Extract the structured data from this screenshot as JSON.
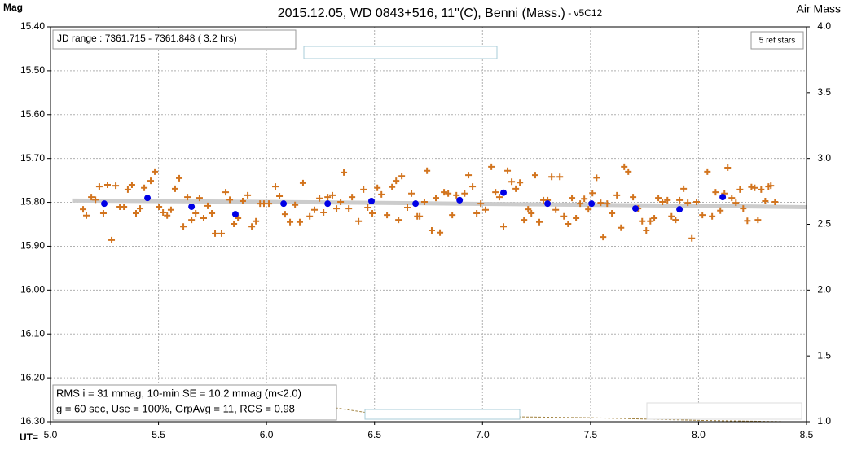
{
  "chart_data": {
    "type": "scatter",
    "title": "2015.12.05, WD 0843+516, 11''(C), Benni (Mass.)",
    "subtitle": " - v5C12",
    "y_label": "Mag",
    "y2_label": "Air Mass",
    "x_label": "UT=",
    "annotations": [
      "JD range : 7361.715 - 7361.848 ( 3.2 hrs)",
      "5 ref stars",
      "RMS i = 31 mmag, 10-min SE = 10.2 mmag (m<2.0)",
      "g = 60 sec, Use = 100%, GrpAvg = 11, RCS = 0.98"
    ],
    "xlim": [
      5.0,
      8.5
    ],
    "xticks": [
      {
        "value": 5.0,
        "label": "5.0"
      },
      5.5,
      {
        "value": 6.0,
        "label": "6.0"
      },
      6.5,
      {
        "value": 7.0,
        "label": "7.0"
      },
      7.5,
      {
        "value": 8.0,
        "label": "8.0"
      },
      8.5
    ],
    "ylim": [
      15.4,
      16.3
    ],
    "y_inverted": true,
    "yticks": [
      {
        "value": 15.4,
        "label": "15.40"
      },
      {
        "value": 15.5,
        "label": "15.50"
      },
      {
        "value": 15.6,
        "label": "15.60"
      },
      {
        "value": 15.7,
        "label": "15.70"
      },
      {
        "value": 15.8,
        "label": "15.80"
      },
      {
        "value": 15.9,
        "label": "15.90"
      },
      {
        "value": 16.0,
        "label": "16.00"
      },
      {
        "value": 16.1,
        "label": "16.10"
      },
      {
        "value": 16.2,
        "label": "16.20"
      },
      {
        "value": 16.3,
        "label": "16.30"
      }
    ],
    "y2lim": [
      1.0,
      4.0
    ],
    "y2ticks": [
      {
        "value": 4.0,
        "label": "4.0"
      },
      3.5,
      {
        "value": 3.0,
        "label": "3.0"
      },
      2.5,
      {
        "value": 2.0,
        "label": "2.0"
      },
      1.5,
      {
        "value": 1.0,
        "label": "1.0"
      }
    ],
    "grid": true,
    "series": [
      {
        "mark": "cross",
        "color": "#d2741e",
        "x": [
          5.151,
          5.166,
          5.189,
          5.208,
          5.226,
          5.245,
          5.264,
          5.283,
          5.302,
          5.321,
          5.34,
          5.358,
          5.377,
          5.396,
          5.415,
          5.434,
          5.464,
          5.483,
          5.502,
          5.521,
          5.54,
          5.558,
          5.577,
          5.596,
          5.615,
          5.634,
          5.653,
          5.672,
          5.69,
          5.709,
          5.728,
          5.747,
          5.762,
          5.792,
          5.811,
          5.83,
          5.849,
          5.868,
          5.89,
          5.913,
          5.932,
          5.951,
          5.97,
          5.988,
          6.011,
          6.041,
          6.06,
          6.086,
          6.109,
          6.132,
          6.154,
          6.169,
          6.2,
          6.222,
          6.245,
          6.264,
          6.283,
          6.305,
          6.324,
          6.343,
          6.358,
          6.381,
          6.396,
          6.426,
          6.449,
          6.468,
          6.49,
          6.513,
          6.532,
          6.558,
          6.581,
          6.6,
          6.611,
          6.626,
          6.652,
          6.671,
          6.698,
          6.709,
          6.731,
          6.743,
          6.765,
          6.784,
          6.803,
          6.822,
          6.841,
          6.86,
          6.879,
          6.917,
          6.935,
          6.954,
          6.973,
          6.992,
          7.014,
          7.041,
          7.06,
          7.078,
          7.097,
          7.116,
          7.135,
          7.154,
          7.173,
          7.192,
          7.211,
          7.226,
          7.244,
          7.263,
          7.282,
          7.301,
          7.32,
          7.339,
          7.358,
          7.377,
          7.396,
          7.414,
          7.433,
          7.452,
          7.471,
          7.49,
          7.509,
          7.528,
          7.547,
          7.558,
          7.577,
          7.599,
          7.622,
          7.641,
          7.656,
          7.675,
          7.697,
          7.72,
          7.739,
          7.758,
          7.777,
          7.795,
          7.814,
          7.833,
          7.856,
          7.875,
          7.894,
          7.912,
          7.931,
          7.95,
          7.969,
          7.991,
          8.018,
          8.041,
          8.063,
          8.079,
          8.101,
          8.12,
          8.135,
          8.154,
          8.173,
          8.192,
          8.207,
          8.226,
          8.245,
          8.26,
          8.275,
          8.29,
          8.309,
          8.324,
          8.335,
          8.354
        ],
        "values": [
          15.816,
          15.83,
          15.788,
          15.794,
          15.764,
          15.825,
          15.76,
          15.886,
          15.762,
          15.81,
          15.81,
          15.771,
          15.76,
          15.825,
          15.814,
          15.767,
          15.751,
          15.73,
          15.81,
          15.823,
          15.83,
          15.817,
          15.769,
          15.745,
          15.855,
          15.788,
          15.84,
          15.825,
          15.79,
          15.836,
          15.808,
          15.825,
          15.871,
          15.871,
          15.777,
          15.794,
          15.849,
          15.836,
          15.797,
          15.784,
          15.855,
          15.843,
          15.803,
          15.803,
          15.803,
          15.764,
          15.786,
          15.827,
          15.845,
          15.806,
          15.845,
          15.756,
          15.832,
          15.817,
          15.791,
          15.823,
          15.788,
          15.784,
          15.814,
          15.799,
          15.732,
          15.814,
          15.788,
          15.843,
          15.771,
          15.812,
          15.825,
          15.767,
          15.782,
          15.829,
          15.765,
          15.751,
          15.84,
          15.74,
          15.812,
          15.78,
          15.832,
          15.832,
          15.799,
          15.728,
          15.864,
          15.79,
          15.869,
          15.777,
          15.78,
          15.829,
          15.784,
          15.78,
          15.738,
          15.764,
          15.825,
          15.803,
          15.817,
          15.719,
          15.777,
          15.788,
          15.855,
          15.728,
          15.753,
          15.769,
          15.755,
          15.84,
          15.816,
          15.825,
          15.738,
          15.845,
          15.795,
          15.795,
          15.742,
          15.817,
          15.742,
          15.832,
          15.849,
          15.79,
          15.836,
          15.803,
          15.792,
          15.816,
          15.779,
          15.744,
          15.801,
          15.879,
          15.803,
          15.825,
          15.784,
          15.858,
          15.719,
          15.73,
          15.788,
          15.814,
          15.843,
          15.864,
          15.843,
          15.836,
          15.79,
          15.799,
          15.795,
          15.832,
          15.84,
          15.795,
          15.769,
          15.801,
          15.882,
          15.799,
          15.829,
          15.73,
          15.832,
          15.777,
          15.819,
          15.78,
          15.721,
          15.79,
          15.801,
          15.771,
          15.814,
          15.842,
          15.765,
          15.767,
          15.84,
          15.771,
          15.797,
          15.764,
          15.762,
          15.799
        ]
      },
      {
        "mark": "dot",
        "color": "#0000e6",
        "x": [
          5.249,
          5.449,
          5.653,
          5.856,
          6.079,
          6.283,
          6.486,
          6.69,
          6.894,
          7.097,
          7.301,
          7.505,
          7.708,
          7.912,
          8.112
        ],
        "values": [
          15.803,
          15.79,
          15.81,
          15.827,
          15.803,
          15.803,
          15.797,
          15.803,
          15.795,
          15.778,
          15.803,
          15.803,
          15.814,
          15.816,
          15.788
        ]
      },
      {
        "mark": "trend",
        "color": "#cccccc",
        "axis": "y2",
        "x": [
          5.1,
          6.0,
          7.0,
          8.0,
          8.5
        ],
        "values": [
          2.68,
          2.67,
          2.655,
          2.64,
          2.63
        ]
      },
      {
        "mark": "dashed",
        "color": "#a0803c",
        "axis": "y2",
        "x": [
          6.3,
          6.5,
          7.0,
          7.5,
          8.0,
          8.4
        ],
        "values": [
          1.11,
          1.06,
          1.04,
          1.03,
          1.01,
          1.0
        ]
      }
    ]
  }
}
